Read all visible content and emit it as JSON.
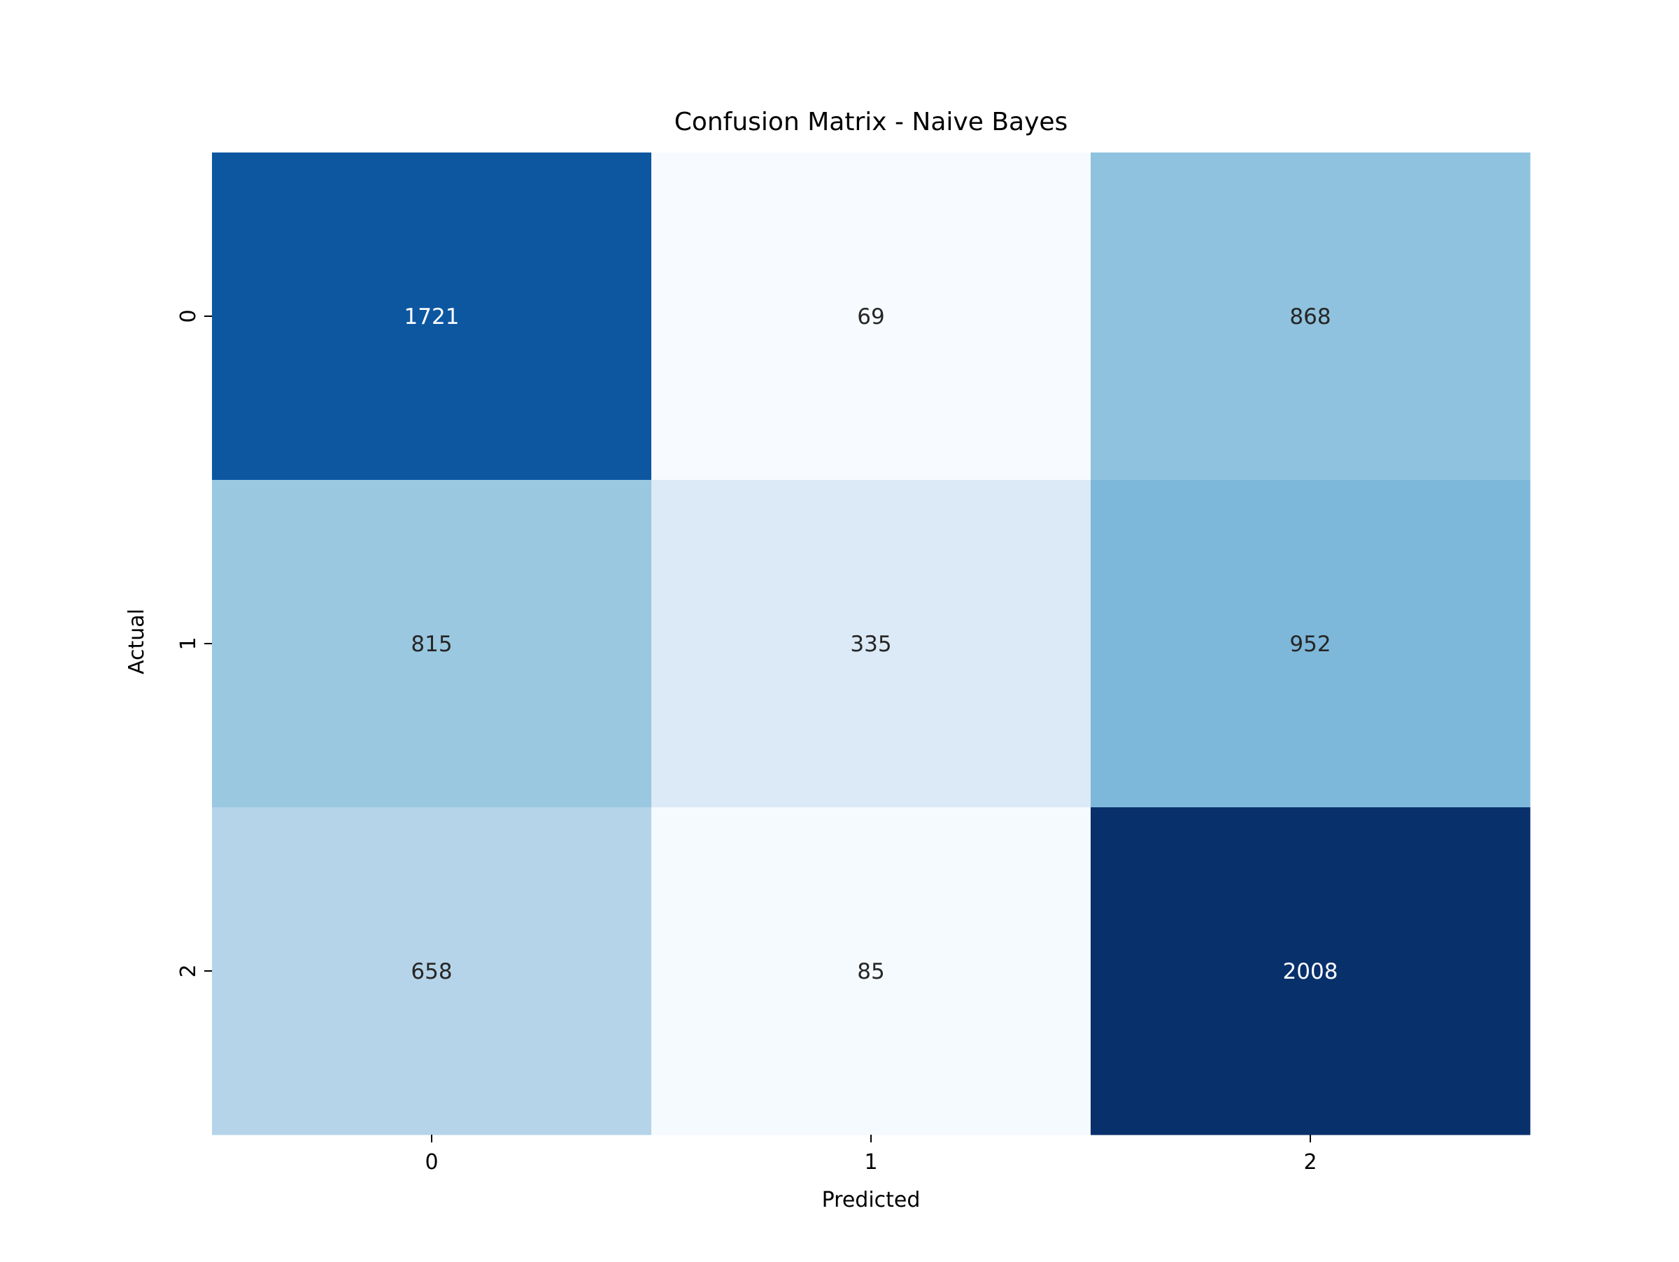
{
  "chart_data": {
    "type": "heatmap",
    "title": "Confusion Matrix - Naive Bayes",
    "xlabel": "Predicted",
    "ylabel": "Actual",
    "x_categories": [
      "0",
      "1",
      "2"
    ],
    "y_categories": [
      "0",
      "1",
      "2"
    ],
    "values": [
      [
        1721,
        69,
        868
      ],
      [
        815,
        335,
        952
      ],
      [
        658,
        85,
        2008
      ]
    ],
    "colormap": "Blues",
    "color_range": [
      69,
      2008
    ],
    "colorbar": false,
    "grid": false,
    "colors": {
      "low": "#f7fbff",
      "high": "#08306b",
      "text_light": "#ffffff",
      "text_dark": "#262626",
      "axis": "#000000"
    }
  }
}
